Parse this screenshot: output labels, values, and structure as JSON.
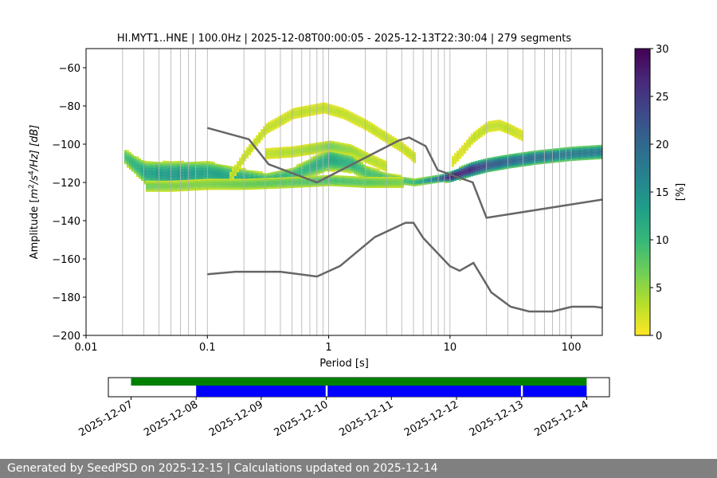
{
  "chart_data": [
    {
      "type": "heatmap",
      "title": "HI.MYT1..HNE | 100.0Hz | 2025-12-08T00:00:05 - 2025-12-13T22:30:04 | 279 segments",
      "xlabel": "Period [s]",
      "ylabel_parts": {
        "pre": "Amplitude [",
        "m": "m",
        "e1": "2",
        "mid": "/s",
        "e2": "4",
        "post": "/Hz] [dB]"
      },
      "x_scale": "log",
      "xlim": [
        0.01,
        180
      ],
      "ylim": [
        -200,
        -50
      ],
      "x_ticks": [
        {
          "value": 0.01,
          "label": "0.01"
        },
        {
          "value": 0.1,
          "label": "0.1"
        },
        {
          "value": 1,
          "label": "1"
        },
        {
          "value": 10,
          "label": "10"
        },
        {
          "value": 100,
          "label": "100"
        }
      ],
      "y_ticks": [
        {
          "value": -60,
          "label": "−60"
        },
        {
          "value": -80,
          "label": "−80"
        },
        {
          "value": -100,
          "label": "−100"
        },
        {
          "value": -120,
          "label": "−120"
        },
        {
          "value": -140,
          "label": "−140"
        },
        {
          "value": -160,
          "label": "−160"
        },
        {
          "value": -180,
          "label": "−180"
        },
        {
          "value": -200,
          "label": "−200"
        }
      ],
      "grid_periods": [
        0.02,
        0.03,
        0.04,
        0.05,
        0.06,
        0.07,
        0.08,
        0.1,
        0.2,
        0.3,
        0.4,
        0.5,
        0.6,
        0.7,
        0.8,
        0.9,
        1,
        2,
        3,
        4,
        5,
        6,
        7,
        8,
        9,
        10,
        20,
        30,
        40,
        50,
        60,
        70,
        80,
        90,
        100
      ],
      "colorbar": {
        "label": "[%]",
        "min": 0,
        "max": 30,
        "ticks": [
          {
            "value": 0,
            "label": "0"
          },
          {
            "value": 5,
            "label": "5"
          },
          {
            "value": 10,
            "label": "10"
          },
          {
            "value": 15,
            "label": "15"
          },
          {
            "value": 20,
            "label": "20"
          },
          {
            "value": 25,
            "label": "25"
          },
          {
            "value": 30,
            "label": "30"
          }
        ],
        "colormap": [
          "#fde725",
          "#b5de2b",
          "#6ece58",
          "#35b779",
          "#1f9e89",
          "#26828e",
          "#31688e",
          "#3e4989",
          "#482878",
          "#440154"
        ]
      },
      "noise_model_color": "#666666",
      "noise_models": [
        {
          "name": "high",
          "points": [
            [
              0.1,
              -91.5
            ],
            [
              0.22,
              -97.4
            ],
            [
              0.32,
              -110.5
            ],
            [
              0.8,
              -120
            ],
            [
              3.8,
              -98
            ],
            [
              4.6,
              -96.5
            ],
            [
              6.3,
              -101
            ],
            [
              7.9,
              -113.5
            ],
            [
              15.4,
              -120
            ],
            [
              20,
              -138.5
            ],
            [
              354.8,
              -126
            ]
          ]
        },
        {
          "name": "low",
          "points": [
            [
              0.1,
              -168
            ],
            [
              0.17,
              -166.7
            ],
            [
              0.4,
              -166.7
            ],
            [
              0.8,
              -169.2
            ],
            [
              1.24,
              -163.7
            ],
            [
              2.4,
              -148.6
            ],
            [
              4.3,
              -141.1
            ],
            [
              5,
              -141.1
            ],
            [
              6,
              -149
            ],
            [
              10,
              -163.8
            ],
            [
              12,
              -166.2
            ],
            [
              15.6,
              -162.1
            ],
            [
              21.9,
              -177.5
            ],
            [
              31.6,
              -185
            ],
            [
              45,
              -187.5
            ],
            [
              70,
              -187.5
            ],
            [
              101,
              -185
            ],
            [
              154,
              -185
            ],
            [
              328,
              -187.5
            ]
          ]
        }
      ],
      "density_bands": [
        {
          "name": "main",
          "points": [
            [
              0.02,
              -106
            ],
            [
              0.025,
              -111
            ],
            [
              0.03,
              -115
            ],
            [
              0.05,
              -116
            ],
            [
              0.1,
              -115
            ],
            [
              0.2,
              -118
            ],
            [
              0.3,
              -119
            ],
            [
              0.5,
              -116
            ],
            [
              1,
              -108
            ],
            [
              1.5,
              -110
            ],
            [
              2,
              -115
            ],
            [
              3,
              -118
            ],
            [
              5,
              -120
            ],
            [
              8,
              -118
            ],
            [
              10,
              -117
            ],
            [
              15,
              -113
            ],
            [
              20,
              -111
            ],
            [
              30,
              -109
            ],
            [
              50,
              -107
            ],
            [
              100,
              -105
            ],
            [
              180,
              -104
            ]
          ],
          "width": [
            4,
            5,
            6,
            7,
            6,
            5,
            4,
            4,
            6,
            5,
            4,
            3,
            2,
            2,
            3,
            4,
            4,
            4,
            4,
            4,
            4
          ],
          "peak": [
            9,
            11,
            13,
            14,
            13,
            12,
            11,
            10,
            12,
            11,
            9,
            9,
            10,
            20,
            28,
            26,
            22,
            20,
            19,
            18,
            18
          ]
        },
        {
          "name": "upper",
          "points": [
            [
              0.15,
              -118
            ],
            [
              0.2,
              -106
            ],
            [
              0.3,
              -92
            ],
            [
              0.5,
              -84
            ],
            [
              0.9,
              -81
            ],
            [
              1.3,
              -84
            ],
            [
              2,
              -90
            ],
            [
              3,
              -97
            ],
            [
              4,
              -102
            ],
            [
              5,
              -107
            ]
          ],
          "width": [
            3,
            3,
            3,
            3,
            3,
            3,
            3,
            3,
            3,
            3
          ],
          "peak": [
            3,
            3,
            3,
            3,
            3,
            3,
            3,
            3,
            3,
            3
          ]
        },
        {
          "name": "second",
          "points": [
            [
              0.3,
              -105
            ],
            [
              0.5,
              -104
            ],
            [
              0.8,
              -102
            ],
            [
              1,
              -101
            ],
            [
              1.5,
              -103
            ],
            [
              2,
              -107
            ],
            [
              3,
              -112
            ]
          ],
          "width": [
            3,
            3,
            3,
            3,
            3,
            3,
            3
          ],
          "peak": [
            3,
            4,
            5,
            7,
            5,
            4,
            3
          ]
        },
        {
          "name": "arc",
          "points": [
            [
              10,
              -110
            ],
            [
              13,
              -102
            ],
            [
              15,
              -97
            ],
            [
              20,
              -91
            ],
            [
              25,
              -90
            ],
            [
              30,
              -92
            ],
            [
              40,
              -96
            ]
          ],
          "width": [
            3,
            3,
            3,
            3,
            3,
            3,
            3
          ],
          "peak": [
            2,
            2,
            3,
            3,
            3,
            3,
            2
          ]
        },
        {
          "name": "lower",
          "points": [
            [
              0.03,
              -122
            ],
            [
              0.05,
              -122
            ],
            [
              0.1,
              -121
            ],
            [
              0.2,
              -121
            ],
            [
              0.5,
              -120
            ],
            [
              1,
              -119
            ],
            [
              2,
              -120
            ],
            [
              4,
              -120
            ]
          ],
          "width": [
            3,
            3,
            3,
            3,
            3,
            3,
            3,
            3
          ],
          "peak": [
            7,
            6,
            6,
            7,
            8,
            9,
            8,
            6
          ]
        }
      ]
    },
    {
      "type": "timeline",
      "x_ticks": [
        "2025-12-07",
        "2025-12-08",
        "2025-12-09",
        "2025-12-10",
        "2025-12-11",
        "2025-12-12",
        "2025-12-13",
        "2025-12-14"
      ],
      "availability_color": "#008000",
      "availability": [
        [
          0.0,
          7.0
        ]
      ],
      "segments_color": "#0000ff",
      "segments": [
        [
          1.0,
          2.99
        ],
        [
          3.02,
          5.99
        ],
        [
          6.02,
          7.0
        ]
      ]
    }
  ],
  "footer": {
    "text": "Generated by SeedPSD on 2025-12-15 | Calculations updated on 2025-12-14"
  }
}
